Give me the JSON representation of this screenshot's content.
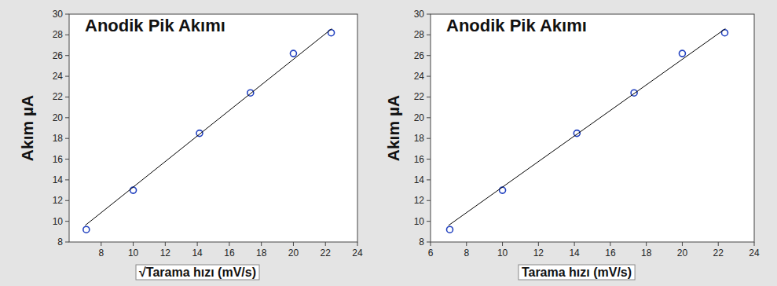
{
  "chart_data": [
    {
      "type": "scatter",
      "title": "Anodik Pik Akımı",
      "x_label": "√Tarama hızı (mV/s)",
      "y_label": "Akım µA",
      "xlim": [
        6,
        24
      ],
      "xticks": [
        8,
        10,
        12,
        14,
        16,
        18,
        20,
        22,
        24
      ],
      "ylim": [
        8,
        30
      ],
      "yticks": [
        8,
        10,
        12,
        14,
        16,
        18,
        20,
        22,
        24,
        26,
        28,
        30
      ],
      "series": [
        {
          "type": "scatter",
          "marker": "circle",
          "color": "#1f3fbf",
          "x": [
            7.07,
            10,
            14.14,
            17.32,
            20,
            22.36
          ],
          "values": [
            9.2,
            13,
            18.5,
            22.4,
            26.2,
            28.2
          ]
        },
        {
          "type": "line",
          "line_style": "solid",
          "color": "#000000",
          "x": [
            7,
            22.4
          ],
          "values": [
            9.6,
            28.6
          ]
        }
      ]
    },
    {
      "type": "scatter",
      "title": "Anodik Pik Akımı",
      "x_label": "Tarama hızı (mV/s)",
      "y_label": "Akım µA",
      "xlim": [
        6,
        24
      ],
      "xticks": [
        6,
        8,
        10,
        12,
        14,
        16,
        18,
        20,
        22,
        24
      ],
      "ylim": [
        8,
        30
      ],
      "yticks": [
        8,
        10,
        12,
        14,
        16,
        18,
        20,
        22,
        24,
        26,
        28,
        30
      ],
      "series": [
        {
          "type": "scatter",
          "marker": "circle",
          "color": "#1f3fbf",
          "x": [
            7.07,
            10,
            14.14,
            17.32,
            20,
            22.36
          ],
          "values": [
            9.2,
            13,
            18.5,
            22.4,
            26.2,
            28.2
          ]
        },
        {
          "type": "line",
          "line_style": "solid",
          "color": "#000000",
          "x": [
            7,
            22.4
          ],
          "values": [
            9.6,
            28.6
          ]
        }
      ]
    }
  ]
}
